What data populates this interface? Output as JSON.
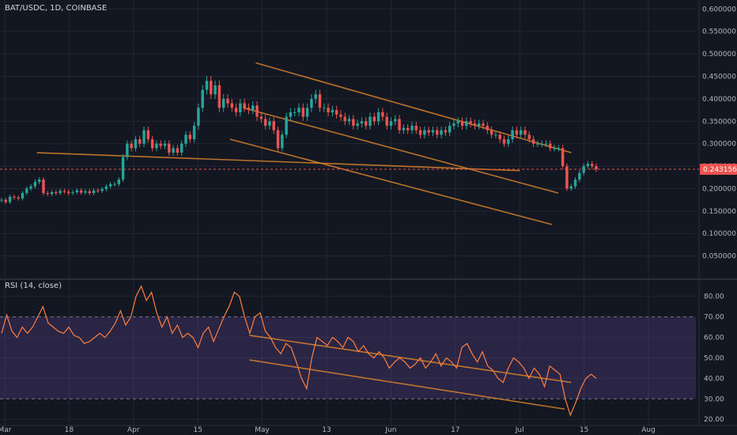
{
  "colors": {
    "background": "#131722",
    "grid": "#232733",
    "axis_text": "#b2b5be",
    "up": "#26a69a",
    "down": "#ef5350",
    "trendline": "#d9832c",
    "price_line": "#ef5350",
    "rsi_line": "#ff7f3f",
    "rsi_band": "#7e57c2"
  },
  "header": {
    "symbol": "BAT/USDC, 1D, COINBASE"
  },
  "price_badge": "0.243156",
  "rsi_label": "RSI (14, close)",
  "chart_data": [
    {
      "type": "candlestick",
      "title": "BAT/USDC, 1D, COINBASE",
      "x_tick_labels": [
        "Mar",
        "18",
        "Apr",
        "15",
        "May",
        "13",
        "Jun",
        "17",
        "Jul",
        "15",
        "Aug"
      ],
      "y_tick_labels": [
        "0.600000",
        "0.550000",
        "0.500000",
        "0.450000",
        "0.400000",
        "0.350000",
        "0.300000",
        "0.250000",
        "0.200000",
        "0.150000",
        "0.100000",
        "0.050000"
      ],
      "ylim": [
        0.0,
        0.62
      ],
      "last_price": 0.243156,
      "closes": [
        0.175,
        0.17,
        0.182,
        0.18,
        0.178,
        0.19,
        0.2,
        0.205,
        0.215,
        0.22,
        0.19,
        0.188,
        0.192,
        0.19,
        0.195,
        0.193,
        0.19,
        0.192,
        0.196,
        0.191,
        0.194,
        0.19,
        0.196,
        0.195,
        0.199,
        0.205,
        0.21,
        0.21,
        0.22,
        0.27,
        0.3,
        0.29,
        0.31,
        0.3,
        0.33,
        0.31,
        0.29,
        0.3,
        0.295,
        0.3,
        0.28,
        0.29,
        0.28,
        0.3,
        0.32,
        0.31,
        0.34,
        0.38,
        0.42,
        0.44,
        0.41,
        0.43,
        0.38,
        0.4,
        0.39,
        0.38,
        0.37,
        0.39,
        0.38,
        0.375,
        0.385,
        0.36,
        0.355,
        0.34,
        0.35,
        0.33,
        0.29,
        0.32,
        0.36,
        0.37,
        0.37,
        0.38,
        0.36,
        0.38,
        0.4,
        0.41,
        0.38,
        0.38,
        0.37,
        0.375,
        0.365,
        0.36,
        0.35,
        0.355,
        0.34,
        0.345,
        0.35,
        0.34,
        0.36,
        0.35,
        0.37,
        0.36,
        0.34,
        0.35,
        0.355,
        0.33,
        0.335,
        0.33,
        0.34,
        0.33,
        0.32,
        0.33,
        0.325,
        0.33,
        0.32,
        0.33,
        0.325,
        0.34,
        0.345,
        0.35,
        0.34,
        0.35,
        0.345,
        0.34,
        0.345,
        0.34,
        0.33,
        0.32,
        0.32,
        0.31,
        0.3,
        0.31,
        0.33,
        0.32,
        0.33,
        0.32,
        0.31,
        0.3,
        0.3,
        0.3,
        0.3,
        0.29,
        0.29,
        0.29,
        0.25,
        0.2,
        0.205,
        0.22,
        0.235,
        0.25,
        0.255,
        0.25,
        0.243
      ],
      "trendlines": [
        {
          "from": [
            0.5,
            0.28
          ],
          "to": [
            8.0,
            0.24
          ]
        },
        {
          "from": [
            3.9,
            0.48
          ],
          "to": [
            8.8,
            0.28
          ]
        },
        {
          "from": [
            3.7,
            0.38
          ],
          "to": [
            8.6,
            0.19
          ]
        },
        {
          "from": [
            3.5,
            0.31
          ],
          "to": [
            8.5,
            0.12
          ]
        }
      ]
    },
    {
      "type": "line",
      "title": "RSI (14, close)",
      "y_tick_labels": [
        "80.00",
        "70.00",
        "60.00",
        "50.00",
        "40.00",
        "30.00",
        "20.00"
      ],
      "ylim": [
        17,
        88
      ],
      "band": [
        30,
        70
      ],
      "values": [
        62,
        71,
        63,
        60,
        65,
        62,
        65,
        70,
        75,
        67,
        65,
        63,
        62,
        65,
        61,
        60,
        57,
        58,
        60,
        62,
        60,
        63,
        67,
        73,
        66,
        70,
        80,
        85,
        78,
        82,
        72,
        65,
        70,
        62,
        66,
        60,
        62,
        60,
        55,
        62,
        65,
        58,
        64,
        70,
        75,
        82,
        80,
        70,
        62,
        70,
        72,
        63,
        60,
        55,
        52,
        57,
        55,
        48,
        40,
        35,
        50,
        60,
        58,
        56,
        60,
        58,
        55,
        60,
        58,
        53,
        56,
        52,
        50,
        53,
        50,
        45,
        48,
        50,
        48,
        45,
        47,
        50,
        45,
        48,
        52,
        46,
        50,
        48,
        45,
        55,
        57,
        52,
        48,
        53,
        46,
        44,
        40,
        38,
        45,
        50,
        48,
        45,
        40,
        45,
        42,
        36,
        46,
        44,
        42,
        30,
        22,
        28,
        35,
        40,
        42,
        40
      ],
      "trendlines": [
        {
          "from": [
            3.8,
            61
          ],
          "to": [
            8.8,
            38
          ]
        },
        {
          "from": [
            3.8,
            49
          ],
          "to": [
            8.7,
            25
          ]
        }
      ]
    }
  ]
}
